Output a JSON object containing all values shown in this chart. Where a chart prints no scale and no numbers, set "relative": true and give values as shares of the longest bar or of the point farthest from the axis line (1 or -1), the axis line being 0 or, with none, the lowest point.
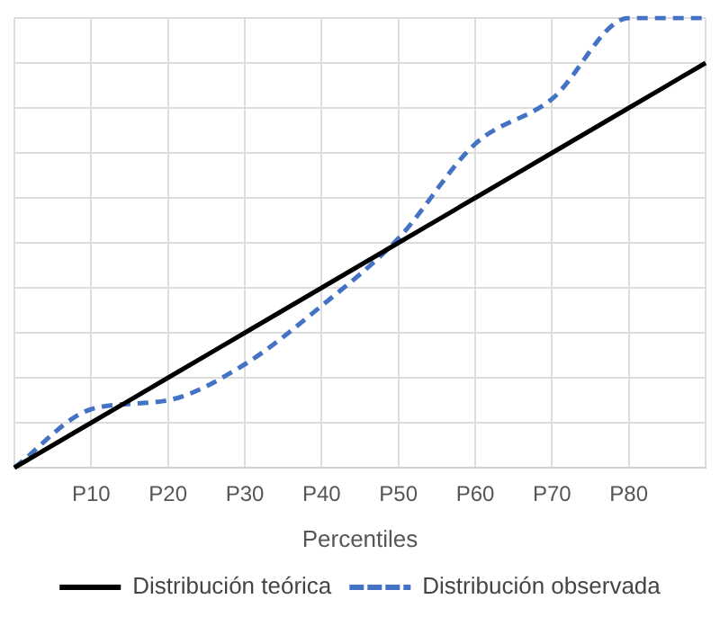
{
  "chart_data": {
    "type": "line",
    "xlabel": "Percentiles",
    "relative": true,
    "grid": true,
    "legend": "bottom",
    "categories": [
      null,
      "P10",
      "P20",
      "P30",
      "P40",
      "P50",
      "P60",
      "P70",
      "P80",
      null
    ],
    "series": [
      {
        "name": "Distribución teórica",
        "color": "#000000",
        "line_style": "solid",
        "values": [
          0,
          0.1,
          0.2,
          0.3,
          0.4,
          0.5,
          0.6,
          0.7,
          0.8,
          0.9
        ]
      },
      {
        "name": "Distribución observada",
        "color": "#4472c4",
        "line_style": "dashed",
        "values": [
          0,
          0.13,
          0.15,
          0.23,
          0.36,
          0.51,
          0.72,
          0.82,
          1,
          1
        ]
      }
    ]
  }
}
